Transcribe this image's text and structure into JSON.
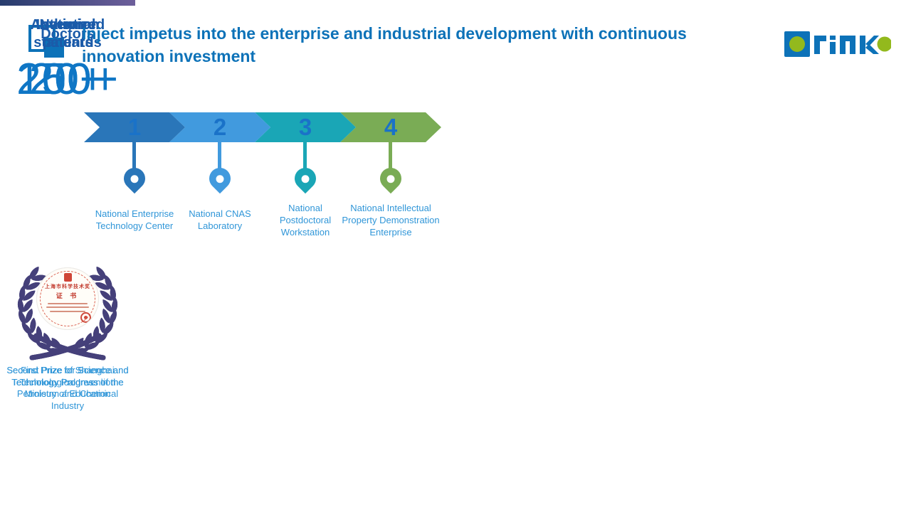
{
  "slide": {
    "title_line1": "Inject impetus into the enterprise and industrial development with continuous",
    "title_line2": "innovation investment",
    "logo_text": "orinko"
  },
  "timeline": {
    "steps": [
      {
        "number": "1",
        "label": "National Enterprise Technology Center"
      },
      {
        "number": "2",
        "label": "National CNAS Laboratory"
      },
      {
        "number": "3",
        "label": "National Postdoctoral Workstation"
      },
      {
        "number": "4",
        "label": "National Intellectual Property Demonstration Enterprise"
      }
    ]
  },
  "awards": [
    {
      "cert_heading": "证 书",
      "caption": "First Prize of Shanghai Technological Invention"
    },
    {
      "caption": "Second Prize for Science and Technology Progress of the Ministry of Education"
    },
    {
      "cert_heading": "上海市科学技术奖",
      "cert_subheading": "证 书",
      "caption": "Second Prize for Science and Technology Progress in the Petroleum and Chemical Industry"
    }
  ],
  "stats": [
    {
      "label": "Authorized patents",
      "value": "200+"
    },
    {
      "label": "Invention patents",
      "value": "150+"
    },
    {
      "label": "National standards",
      "value": "20+"
    },
    {
      "label": "Doctors",
      "value": "20+"
    }
  ],
  "colors": {
    "title_blue": "#0d72b8",
    "caption_blue": "#3096d8",
    "step_colors": [
      "#2a76b9",
      "#419ade",
      "#1aa6b6",
      "#7aac55"
    ],
    "step_number_blue": "#1a72c8",
    "stat_label_blue": "#1b5ba9",
    "stat_value_blue": "#0f76c5",
    "bar_gradient": [
      "#273c6d",
      "#6d5f9b"
    ],
    "wreath_purple": "#45407a",
    "logo_green": "#93b91d"
  }
}
